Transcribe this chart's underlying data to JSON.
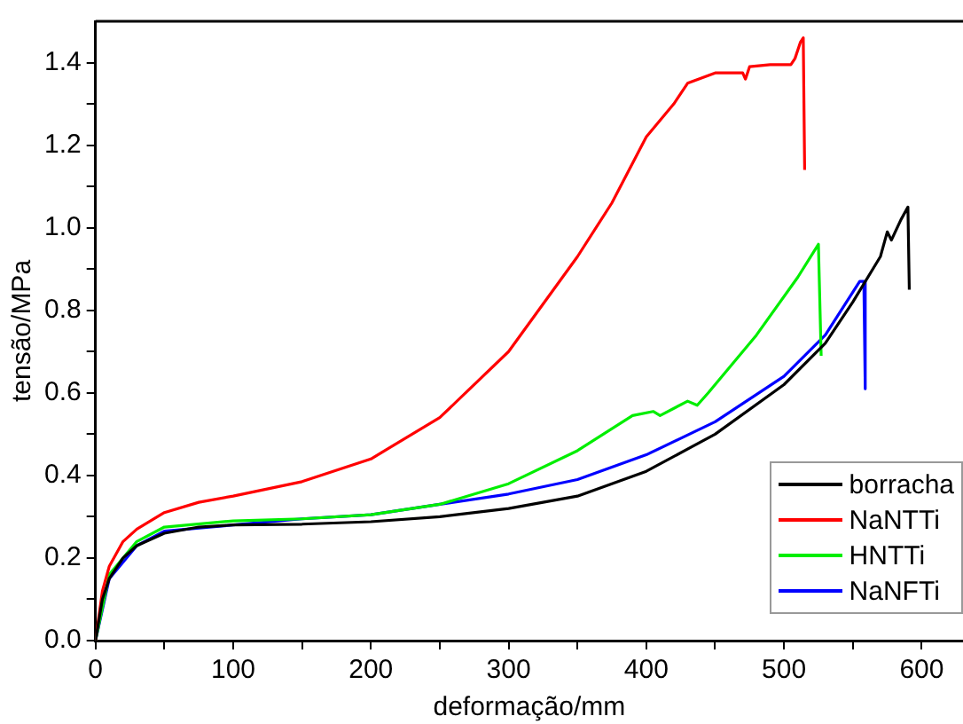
{
  "chart_data": {
    "type": "line",
    "xlabel": "deformação/mm",
    "ylabel": "tensão/MPa",
    "xlim": [
      0,
      630
    ],
    "ylim": [
      0,
      1.5
    ],
    "xticks": [
      0,
      {
        "value": 50,
        "label": null
      },
      100,
      {
        "value": 150,
        "label": null
      },
      200,
      {
        "value": 250,
        "label": null
      },
      300,
      {
        "value": 350,
        "label": null
      },
      400,
      {
        "value": 450,
        "label": null
      },
      500,
      {
        "value": 550,
        "label": null
      },
      600
    ],
    "yticks": [
      "0.0",
      {
        "value": 0.1,
        "label": null
      },
      {
        "value": 0.2,
        "label": "0.2"
      },
      {
        "value": 0.3,
        "label": null
      },
      {
        "value": 0.4,
        "label": "0.4"
      },
      {
        "value": 0.5,
        "label": null
      },
      {
        "value": 0.6,
        "label": "0.6"
      },
      {
        "value": 0.7,
        "label": null
      },
      {
        "value": 0.8,
        "label": "0.8"
      },
      {
        "value": 0.9,
        "label": null
      },
      {
        "value": 1.0,
        "label": "1.0"
      },
      {
        "value": 1.1,
        "label": null
      },
      {
        "value": 1.2,
        "label": "1.2"
      },
      {
        "value": 1.3,
        "label": null
      },
      {
        "value": 1.4,
        "label": "1.4"
      }
    ],
    "grid": false,
    "legend": "bottom right",
    "marker": "none",
    "line_style": "solid",
    "series": [
      {
        "name": "borracha",
        "color": "#000000",
        "x": [
          0,
          5,
          10,
          20,
          30,
          50,
          75,
          100,
          150,
          200,
          250,
          300,
          350,
          400,
          450,
          500,
          530,
          550,
          570,
          575,
          578,
          585,
          590,
          591
        ],
        "values": [
          0,
          0.1,
          0.15,
          0.2,
          0.23,
          0.26,
          0.275,
          0.28,
          0.282,
          0.288,
          0.3,
          0.32,
          0.35,
          0.41,
          0.5,
          0.62,
          0.72,
          0.82,
          0.93,
          0.99,
          0.97,
          1.02,
          1.05,
          0.85
        ]
      },
      {
        "name": "NaNTTi",
        "color": "#ff0000",
        "x": [
          0,
          5,
          10,
          20,
          30,
          50,
          75,
          100,
          150,
          200,
          250,
          300,
          350,
          375,
          400,
          420,
          430,
          450,
          470,
          472,
          475,
          490,
          505,
          508,
          512,
          514,
          515
        ],
        "values": [
          0,
          0.12,
          0.18,
          0.24,
          0.27,
          0.31,
          0.335,
          0.35,
          0.385,
          0.44,
          0.54,
          0.7,
          0.93,
          1.06,
          1.22,
          1.3,
          1.35,
          1.375,
          1.375,
          1.36,
          1.39,
          1.395,
          1.395,
          1.41,
          1.45,
          1.46,
          1.14
        ]
      },
      {
        "name": "HNTTi",
        "color": "#00ee00",
        "x": [
          0,
          10,
          30,
          50,
          100,
          150,
          200,
          250,
          300,
          350,
          390,
          405,
          410,
          430,
          437,
          445,
          480,
          510,
          525,
          527
        ],
        "values": [
          0,
          0.16,
          0.24,
          0.275,
          0.29,
          0.295,
          0.305,
          0.33,
          0.38,
          0.46,
          0.545,
          0.555,
          0.545,
          0.58,
          0.57,
          0.6,
          0.74,
          0.88,
          0.96,
          0.69
        ]
      },
      {
        "name": "NaNFTi",
        "color": "#0000ff",
        "x": [
          0,
          10,
          30,
          50,
          100,
          150,
          200,
          250,
          300,
          350,
          400,
          450,
          500,
          530,
          555,
          558,
          559
        ],
        "values": [
          0,
          0.15,
          0.23,
          0.265,
          0.28,
          0.295,
          0.305,
          0.33,
          0.355,
          0.39,
          0.45,
          0.53,
          0.64,
          0.74,
          0.87,
          0.87,
          0.61
        ]
      }
    ]
  }
}
